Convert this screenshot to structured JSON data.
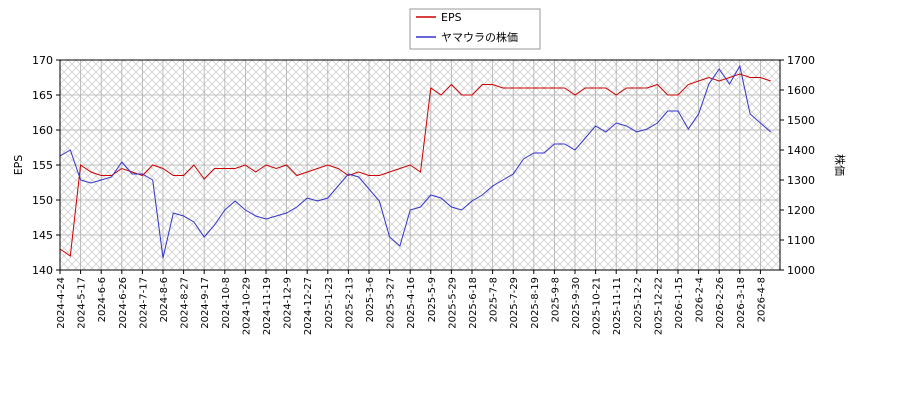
{
  "chart_data": {
    "type": "line",
    "x": [
      "2024-4-24",
      "2024-5-7",
      "2024-5-17",
      "2024-5-28",
      "2024-6-6",
      "2024-6-17",
      "2024-6-26",
      "2024-7-5",
      "2024-7-17",
      "2024-7-26",
      "2024-8-6",
      "2024-8-16",
      "2024-8-27",
      "2024-9-5",
      "2024-9-17",
      "2024-9-27",
      "2024-10-8",
      "2024-10-18",
      "2024-10-29",
      "2024-11-8",
      "2024-11-19",
      "2024-11-28",
      "2024-12-9",
      "2024-12-18",
      "2024-12-27",
      "2025-1-14",
      "2025-1-23",
      "2025-2-3",
      "2025-2-13",
      "2025-2-25",
      "2025-3-6",
      "2025-3-17",
      "2025-3-27",
      "2025-4-7",
      "2025-4-16",
      "2025-4-25",
      "2025-5-9",
      "2025-5-19",
      "2025-5-29",
      "2025-6-9",
      "2025-6-18",
      "2025-6-27",
      "2025-7-8",
      "2025-7-17",
      "2025-7-29",
      "2025-8-7",
      "2025-8-19",
      "2025-8-28",
      "2025-9-8",
      "2025-9-18",
      "2025-9-30",
      "2025-10-9",
      "2025-10-21",
      "2025-10-30",
      "2025-11-11",
      "2025-11-20",
      "2025-12-2",
      "2025-12-11",
      "2025-12-22",
      "2026-1-6",
      "2026-1-15",
      "2026-1-26",
      "2026-2-4",
      "2026-2-16",
      "2026-2-26",
      "2026-3-9",
      "2026-3-18",
      "2026-3-27",
      "2026-4-8",
      "2026-4-17"
    ],
    "series": [
      {
        "name": "EPS",
        "color": "#cc0000",
        "axis": "y",
        "values": [
          143,
          142,
          155,
          154,
          153.5,
          153.5,
          154.5,
          154,
          153.5,
          155,
          154.5,
          153.5,
          153.5,
          155,
          153,
          154.5,
          154.5,
          154.5,
          155,
          154,
          155,
          154.5,
          155,
          153.5,
          154,
          154.5,
          155,
          154.5,
          153.5,
          154,
          153.5,
          153.5,
          154,
          154.5,
          155,
          154,
          166,
          165,
          166.5,
          165,
          165,
          166.5,
          166.5,
          166,
          166,
          166,
          166,
          166,
          166,
          166,
          165,
          166,
          166,
          166,
          165,
          166,
          166,
          166,
          166.5,
          165,
          165,
          166.5,
          167,
          167.5,
          167,
          167.5,
          168,
          167.5,
          167.5,
          167
        ]
      },
      {
        "name": "ヤマウラの株価",
        "color": "#3333cc",
        "axis": "y2",
        "values": [
          1380,
          1400,
          1300,
          1290,
          1300,
          1310,
          1360,
          1320,
          1320,
          1300,
          1040,
          1190,
          1180,
          1160,
          1110,
          1150,
          1200,
          1230,
          1200,
          1180,
          1170,
          1180,
          1190,
          1210,
          1240,
          1230,
          1240,
          1280,
          1320,
          1310,
          1270,
          1230,
          1110,
          1080,
          1200,
          1210,
          1250,
          1240,
          1210,
          1200,
          1230,
          1250,
          1280,
          1300,
          1320,
          1370,
          1390,
          1390,
          1420,
          1420,
          1400,
          1440,
          1480,
          1460,
          1490,
          1480,
          1460,
          1470,
          1490,
          1530,
          1530,
          1470,
          1520,
          1620,
          1670,
          1620,
          1680,
          1520,
          1490,
          1460
        ]
      }
    ],
    "xticks": [
      "2024-4-24",
      "2024-5-17",
      "2024-6-6",
      "2024-6-26",
      "2024-7-17",
      "2024-8-6",
      "2024-8-27",
      "2024-9-17",
      "2024-10-8",
      "2024-10-29",
      "2024-11-19",
      "2024-12-9",
      "2024-12-27",
      "2025-1-23",
      "2025-2-13",
      "2025-3-6",
      "2025-3-27",
      "2025-4-16",
      "2025-5-9",
      "2025-5-29",
      "2025-6-18",
      "2025-7-8",
      "2025-7-29",
      "2025-8-19",
      "2025-9-8",
      "2025-9-30",
      "2025-10-21",
      "2025-11-11",
      "2025-12-2",
      "2025-12-22",
      "2026-1-15",
      "2026-2-4",
      "2026-2-26",
      "2026-3-18",
      "2026-4-8"
    ],
    "ylabel": "EPS",
    "y2label": "株価",
    "ylim": [
      140,
      170
    ],
    "yticks": [
      140,
      145,
      150,
      155,
      160,
      165,
      170
    ],
    "y2lim": [
      1000,
      1700
    ],
    "y2ticks": [
      1000,
      1100,
      1200,
      1300,
      1400,
      1500,
      1600,
      1700
    ],
    "grid": true,
    "legend": "top"
  }
}
